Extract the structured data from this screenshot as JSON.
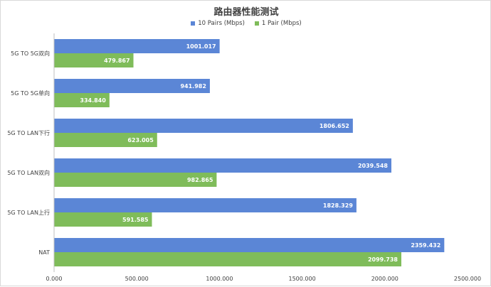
{
  "colors": {
    "series_blue": "#5b86d6",
    "series_green": "#7fbc5a",
    "axis": "#bfbfbf",
    "text": "#404040"
  },
  "chart_data": {
    "type": "bar",
    "orientation": "horizontal",
    "title": "路由器性能测试",
    "xlabel": "",
    "ylabel": "",
    "xlim": [
      0,
      2500
    ],
    "x_ticks": [
      "0.000",
      "500.000",
      "1000.000",
      "1500.000",
      "2000.000",
      "2500.000"
    ],
    "x_tick_values": [
      0,
      500,
      1000,
      1500,
      2000,
      2500
    ],
    "grid": false,
    "legend_position": "top",
    "categories": [
      "5G TO 5G双向",
      "5G TO 5G单向",
      "5G TO LAN下行",
      "5G TO LAN双向",
      "5G TO LAN上行",
      "NAT"
    ],
    "series": [
      {
        "name": "10  Pairs  (Mbps)",
        "color": "#5b86d6",
        "values": [
          1001.017,
          941.982,
          1806.652,
          2039.548,
          1828.329,
          2359.432
        ],
        "labels": [
          "1001.017",
          "941.982",
          "1806.652",
          "2039.548",
          "1828.329",
          "2359.432"
        ]
      },
      {
        "name": "1 Pair (Mbps)",
        "color": "#7fbc5a",
        "values": [
          479.867,
          334.84,
          623.005,
          982.865,
          591.585,
          2099.738
        ],
        "labels": [
          "479.867",
          "334.840",
          "623.005",
          "982.865",
          "591.585",
          "2099.738"
        ]
      }
    ]
  }
}
